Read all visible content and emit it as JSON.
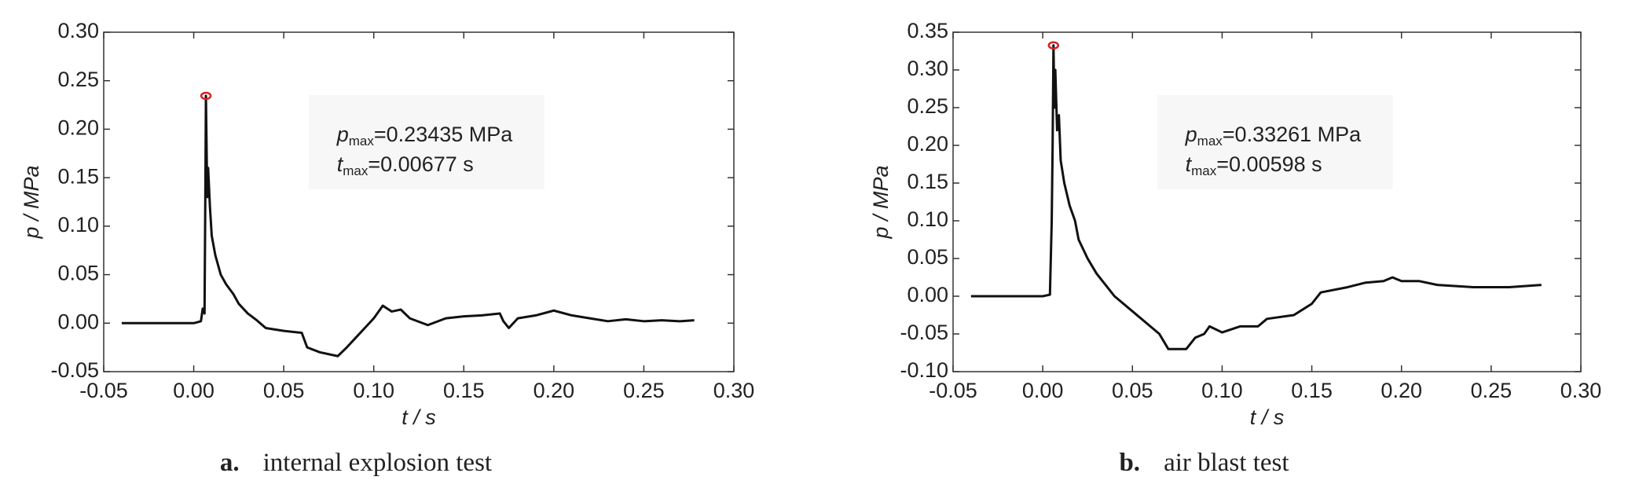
{
  "chart_data": [
    {
      "type": "line",
      "xlabel": "t / s",
      "ylabel": "p / MPa",
      "caption_label": "a.",
      "caption": "internal explosion test",
      "annotation": [
        {
          "symbol": "p",
          "subscript": "max",
          "text": "=0.23435 MPa"
        },
        {
          "symbol": "t",
          "subscript": "max",
          "text": "=0.00677 s"
        }
      ],
      "xlim": [
        -0.05,
        0.3
      ],
      "ylim": [
        -0.05,
        0.3
      ],
      "xticks": [
        -0.05,
        {
          "value": 0,
          "label": "0.00"
        },
        0.05,
        {
          "value": 0.1,
          "label": "0.10"
        },
        0.15,
        {
          "value": 0.2,
          "label": "0.20"
        },
        0.25,
        {
          "value": 0.3,
          "label": "0.30"
        }
      ],
      "yticks": [
        -0.05,
        {
          "value": 0,
          "label": "0.00"
        },
        0.05,
        {
          "value": 0.1,
          "label": "0.10"
        },
        0.15,
        {
          "value": 0.2,
          "label": "0.20"
        },
        0.25,
        {
          "value": 0.3,
          "label": "0.30"
        }
      ],
      "peak_color": "#d62020",
      "series": [
        {
          "color": "#111111",
          "x": [
            -0.04,
            -0.02,
            0.0,
            0.004,
            0.005,
            0.006,
            0.0065,
            0.00677,
            0.0075,
            0.008,
            0.009,
            0.01,
            0.012,
            0.015,
            0.018,
            0.022,
            0.025,
            0.03,
            0.035,
            0.04,
            0.05,
            0.06,
            0.063,
            0.07,
            0.08,
            0.085,
            0.09,
            0.095,
            0.1,
            0.105,
            0.11,
            0.115,
            0.12,
            0.13,
            0.14,
            0.15,
            0.16,
            0.17,
            0.172,
            0.175,
            0.18,
            0.19,
            0.2,
            0.21,
            0.22,
            0.23,
            0.24,
            0.25,
            0.26,
            0.27,
            0.278
          ],
          "values": [
            0,
            0,
            0,
            0.002,
            0.015,
            0.01,
            0.15,
            0.23435,
            0.13,
            0.16,
            0.12,
            0.09,
            0.07,
            0.05,
            0.04,
            0.03,
            0.02,
            0.01,
            0.003,
            -0.005,
            -0.008,
            -0.01,
            -0.025,
            -0.03,
            -0.034,
            -0.025,
            -0.015,
            -0.005,
            0.005,
            0.018,
            0.012,
            0.014,
            0.005,
            -0.002,
            0.005,
            0.007,
            0.008,
            0.01,
            0.002,
            -0.005,
            0.005,
            0.008,
            0.013,
            0.008,
            0.005,
            0.002,
            0.004,
            0.002,
            0.003,
            0.002,
            0.003
          ]
        }
      ]
    },
    {
      "type": "line",
      "xlabel": "t / s",
      "ylabel": "p / MPa",
      "caption_label": "b.",
      "caption": "air blast test",
      "annotation": [
        {
          "symbol": "p",
          "subscript": "max",
          "text": "=0.33261 MPa"
        },
        {
          "symbol": "t",
          "subscript": "max",
          "text": "=0.00598 s"
        }
      ],
      "xlim": [
        -0.05,
        0.3
      ],
      "ylim": [
        -0.1,
        0.35
      ],
      "xticks": [
        -0.05,
        {
          "value": 0,
          "label": "0.00"
        },
        0.05,
        {
          "value": 0.1,
          "label": "0.10"
        },
        0.15,
        {
          "value": 0.2,
          "label": "0.20"
        },
        0.25,
        {
          "value": 0.3,
          "label": "0.30"
        }
      ],
      "yticks": [
        {
          "value": -0.1,
          "label": "-0.10"
        },
        -0.05,
        {
          "value": 0,
          "label": "0.00"
        },
        0.05,
        {
          "value": 0.1,
          "label": "0.10"
        },
        0.15,
        {
          "value": 0.2,
          "label": "0.20"
        },
        0.25,
        {
          "value": 0.3,
          "label": "0.30"
        },
        0.35
      ],
      "peak_color": "#d62020",
      "series": [
        {
          "color": "#111111",
          "x": [
            -0.04,
            -0.02,
            0.0,
            0.004,
            0.005,
            0.0055,
            0.00598,
            0.0065,
            0.007,
            0.008,
            0.009,
            0.01,
            0.012,
            0.015,
            0.018,
            0.02,
            0.025,
            0.03,
            0.035,
            0.04,
            0.05,
            0.06,
            0.065,
            0.07,
            0.08,
            0.085,
            0.09,
            0.093,
            0.1,
            0.11,
            0.12,
            0.125,
            0.14,
            0.15,
            0.155,
            0.17,
            0.18,
            0.19,
            0.195,
            0.2,
            0.21,
            0.22,
            0.24,
            0.26,
            0.278
          ],
          "values": [
            0,
            0,
            0,
            0.002,
            0.1,
            0.2,
            0.33261,
            0.25,
            0.3,
            0.22,
            0.24,
            0.18,
            0.15,
            0.12,
            0.1,
            0.075,
            0.05,
            0.03,
            0.015,
            0,
            -0.02,
            -0.04,
            -0.05,
            -0.07,
            -0.07,
            -0.055,
            -0.05,
            -0.04,
            -0.048,
            -0.04,
            -0.04,
            -0.03,
            -0.025,
            -0.01,
            0.005,
            0.012,
            0.018,
            0.02,
            0.025,
            0.02,
            0.02,
            0.015,
            0.012,
            0.012,
            0.015
          ]
        }
      ]
    }
  ]
}
